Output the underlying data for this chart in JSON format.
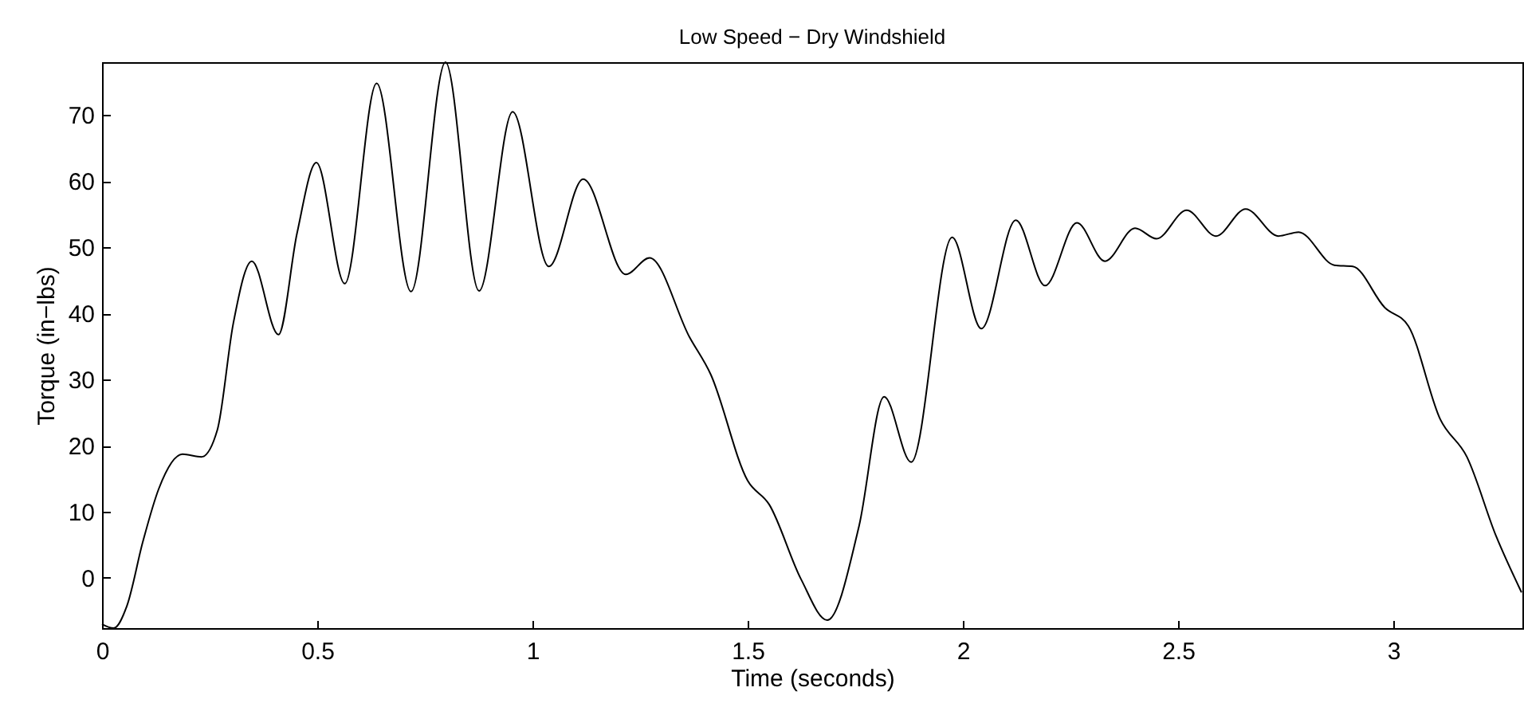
{
  "chart_data": {
    "type": "line",
    "title": "Low Speed − Dry Windshield",
    "xlabel": "Time (seconds)",
    "ylabel": "Torque (in−lbs)",
    "x": [
      0,
      0.027,
      0.058,
      0.095,
      0.132,
      0.187,
      0.231,
      0.268,
      0.305,
      0.348,
      0.41,
      0.453,
      0.498,
      0.564,
      0.638,
      0.718,
      0.798,
      0.876,
      0.954,
      1.038,
      1.118,
      1.217,
      1.272,
      1.365,
      1.414,
      1.5,
      1.55,
      1.624,
      1.685,
      1.759,
      1.817,
      1.88,
      1.975,
      2.043,
      2.123,
      2.191,
      2.265,
      2.33,
      2.4,
      2.45,
      2.52,
      2.588,
      2.657,
      2.733,
      2.78,
      2.863,
      2.906,
      2.98,
      3.035,
      3.109,
      3.171,
      3.239,
      3.298
    ],
    "series": [
      {
        "color": "#000000",
        "values": [
          -7.0,
          -7.6,
          -4.2,
          5.5,
          13.5,
          18.7,
          18.3,
          22.4,
          38.5,
          47.9,
          36.8,
          52.1,
          62.8,
          44.5,
          74.8,
          43.3,
          78.0,
          43.4,
          70.5,
          47.1,
          60.3,
          45.9,
          48.4,
          36.4,
          30.8,
          14.7,
          11.1,
          -0.2,
          -6.4,
          7.9,
          27.4,
          17.5,
          51.5,
          37.7,
          54.1,
          44.2,
          53.7,
          47.9,
          52.9,
          51.3,
          55.6,
          51.7,
          55.8,
          51.7,
          52.3,
          47.3,
          47.1,
          40.9,
          38.1,
          24.0,
          18.3,
          6.3,
          -2.2
        ]
      }
    ],
    "xlim": [
      0,
      3.3
    ],
    "xticks": [
      0,
      0.5,
      1,
      1.5,
      2,
      2.5,
      3
    ],
    "ylim": [
      -7.6,
      78
    ],
    "yticks": [
      0,
      10,
      20,
      30,
      40,
      50,
      60,
      70
    ],
    "grid": false,
    "line_style": "solid",
    "marker": "none"
  }
}
